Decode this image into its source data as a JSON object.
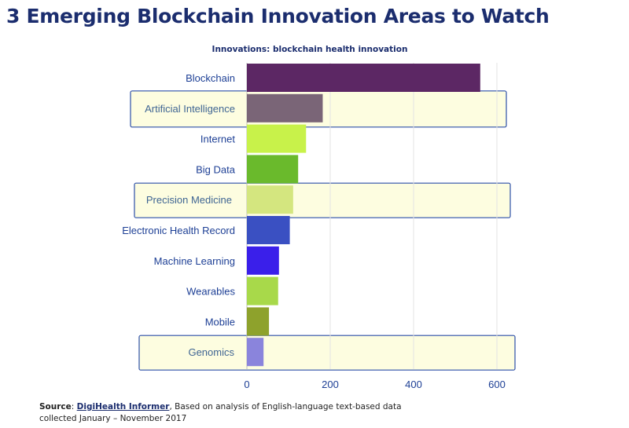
{
  "page": {
    "title": "3 Emerging Blockchain Innovation Areas to Watch"
  },
  "footer": {
    "source_word": "Source",
    "source_sep": ": ",
    "source_name": "DigiHealth Informer",
    "source_rest": ", Based on analysis of English-language text-based data",
    "line2": "collected January – November 2017"
  },
  "chart_data": {
    "type": "bar",
    "orientation": "horizontal",
    "title": "Innovations: blockchain health innovation",
    "categories": [
      "Blockchain",
      "Artificial Intelligence",
      "Internet",
      "Big Data",
      "Precision Medicine",
      "Electronic Health Record",
      "Machine Learning",
      "Wearables",
      "Mobile",
      "Genomics"
    ],
    "values": [
      560,
      182,
      142,
      123,
      111,
      103,
      77,
      75,
      53,
      40
    ],
    "colors": [
      "#5c2764",
      "#7a6577",
      "#c8f24a",
      "#6aba2c",
      "#d4e67f",
      "#3a50c2",
      "#3a1fea",
      "#a8d94a",
      "#8ea22c",
      "#8a84dc"
    ],
    "highlighted": [
      "Artificial Intelligence",
      "Precision Medicine",
      "Genomics"
    ],
    "highlight_fill": "#fdfde0",
    "highlight_border": "#2c4fa8",
    "xlim": [
      0,
      600
    ],
    "xticks": [
      0,
      200,
      400,
      600
    ],
    "grid": true,
    "xlabel": "",
    "ylabel": ""
  }
}
